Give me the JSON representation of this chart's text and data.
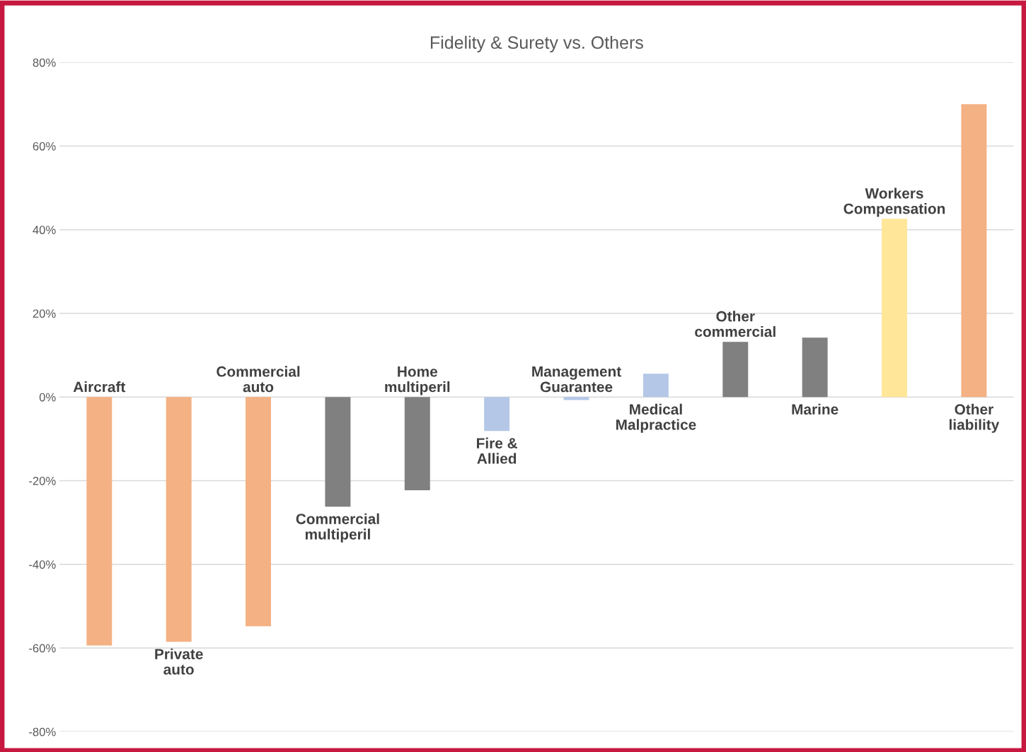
{
  "chart_data": {
    "type": "bar",
    "title": "Fidelity & Surety vs. Others",
    "categories": [
      "Aircraft",
      "Private\nauto",
      "Commercial\nauto",
      "Commercial\nmultiperil",
      "Home\nmultiperil",
      "Fire &\nAllied",
      "Management\nGuarantee",
      "Medical\nMalpractice",
      "Other\ncommercial",
      "Marine",
      "Workers\nCompensation",
      "Other\nliability"
    ],
    "values": [
      -59.4,
      -58.5,
      -54.8,
      -26.2,
      -22.3,
      -8.1,
      -0.7,
      5.6,
      13.2,
      14.2,
      42.6,
      70.0
    ],
    "colors": [
      "#f4b183",
      "#f4b183",
      "#f4b183",
      "#808080",
      "#808080",
      "#b4c7e7",
      "#b4c7e7",
      "#b4c7e7",
      "#808080",
      "#808080",
      "#ffe699",
      "#f4b183"
    ],
    "ylim": [
      -80,
      80
    ],
    "yticks": [
      {
        "value": -80,
        "label": "-80%"
      },
      {
        "value": -60,
        "label": "-60%"
      },
      {
        "value": -40,
        "label": "-40%"
      },
      {
        "value": -20,
        "label": "-20%"
      },
      {
        "value": 0,
        "label": "0%"
      },
      {
        "value": 20,
        "label": "20%"
      },
      {
        "value": 40,
        "label": "40%"
      },
      {
        "value": 60,
        "label": "60%"
      },
      {
        "value": 80,
        "label": "80%"
      }
    ],
    "grid": "y",
    "tick_labels": "y",
    "legend": false
  }
}
